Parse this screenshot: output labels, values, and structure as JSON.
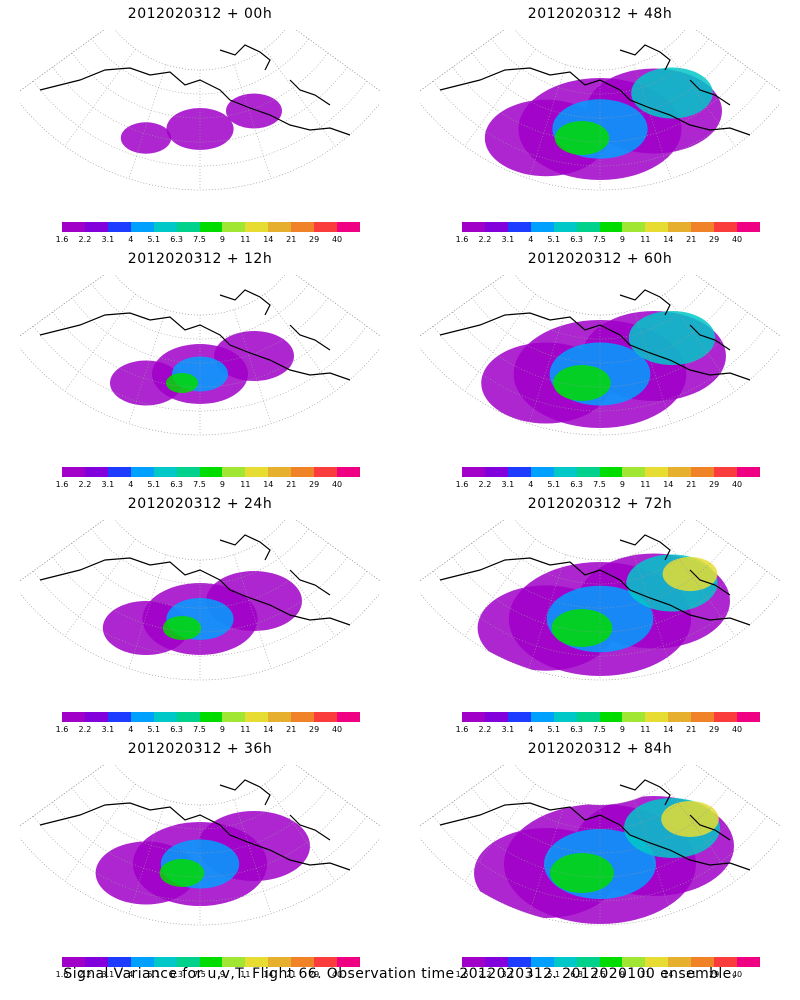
{
  "panels": [
    {
      "title": "2012020312 + 00h",
      "intensity": 0.15,
      "spread": 0.35
    },
    {
      "title": "2012020312 + 48h",
      "intensity": 0.45,
      "spread": 0.85
    },
    {
      "title": "2012020312 + 12h",
      "intensity": 0.25,
      "spread": 0.5
    },
    {
      "title": "2012020312 + 60h",
      "intensity": 0.55,
      "spread": 0.9
    },
    {
      "title": "2012020312 + 24h",
      "intensity": 0.3,
      "spread": 0.6
    },
    {
      "title": "2012020312 + 72h",
      "intensity": 0.65,
      "spread": 0.95
    },
    {
      "title": "2012020312 + 36h",
      "intensity": 0.38,
      "spread": 0.7
    },
    {
      "title": "2012020312 + 84h",
      "intensity": 0.75,
      "spread": 1.0
    }
  ],
  "colorbar": {
    "labels": [
      "1.6",
      "2.2",
      "3.1",
      "4",
      "5.1",
      "6.3",
      "7.5",
      "9",
      "11",
      "14",
      "21",
      "29",
      "40"
    ],
    "colors": [
      "#a000c8",
      "#8200dc",
      "#1e3cff",
      "#00a0ff",
      "#00c8c8",
      "#00d28c",
      "#00dc00",
      "#a0e632",
      "#e6dc32",
      "#e6af2d",
      "#f08228",
      "#fa3c3c",
      "#f00082"
    ]
  },
  "caption": "Signal Variance for u,v,T. Flight 66. Observation time 2012020312. 2012020100 ensemble."
}
